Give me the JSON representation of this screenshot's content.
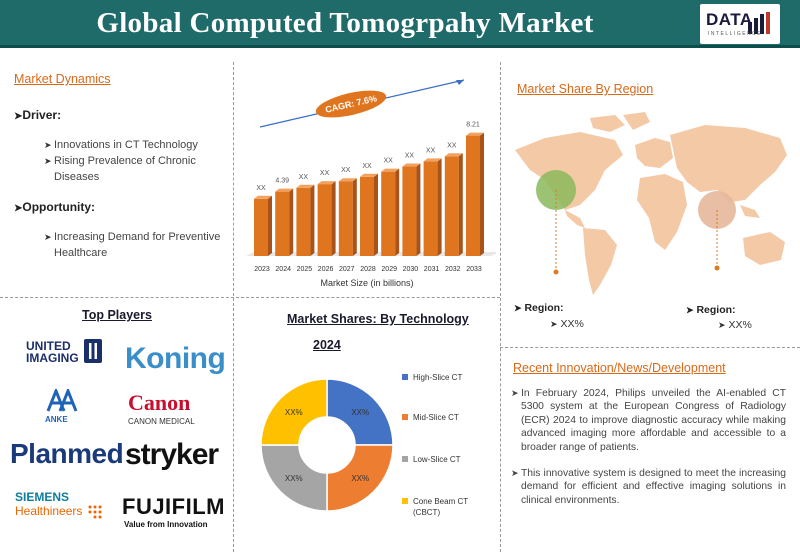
{
  "header": {
    "title": "Global Computed Tomogrpahy Market",
    "logo_text": "DATA",
    "logo_sub": "INTELLIGENCE"
  },
  "dynamics": {
    "title": "Market Dynamics",
    "driver_label": "Driver:",
    "drivers": [
      "Innovations in CT Technology",
      "Rising Prevalence of Chronic",
      "Diseases"
    ],
    "opportunity_label": "Opportunity:",
    "opportunities": [
      "Increasing Demand for Preventive",
      "Healthcare"
    ]
  },
  "chart_data": {
    "type": "bar",
    "categories": [
      "2023",
      "2024",
      "2025",
      "2026",
      "2027",
      "2028",
      "2029",
      "2030",
      "2031",
      "2032",
      "2033"
    ],
    "values": [
      3.9,
      4.39,
      4.65,
      4.9,
      5.1,
      5.4,
      5.75,
      6.1,
      6.45,
      6.8,
      8.21
    ],
    "data_labels": [
      "XX",
      "4.39",
      "XX",
      "XX",
      "XX",
      "XX",
      "XX",
      "XX",
      "XX",
      "XX",
      "8.21"
    ],
    "xlabel": "Market Size (in billions)",
    "cagr": "CAGR: 7.6%",
    "color": "#e0751f"
  },
  "region": {
    "title": "Market Share By Region",
    "label1": "Region:",
    "value1": "XX%",
    "label2": "Region:",
    "value2": "XX%"
  },
  "players": {
    "title": "Top Players",
    "logos": [
      "UNITED",
      "IMAGING",
      "Koning",
      "ANKE",
      "Canon",
      "CANON MEDICAL",
      "Planmed",
      "stryker",
      "SIEMENS",
      "Healthineers",
      "FUJIFILM",
      "Value from Innovation"
    ]
  },
  "technology": {
    "title": "Market Shares: By Technology",
    "year": "2024",
    "legend": [
      {
        "name": "High-Slice CT",
        "color": "#4472c4",
        "value": "XX%"
      },
      {
        "name": "Mid-Slice CT",
        "color": "#ed7d31",
        "value": "XX%"
      },
      {
        "name": "Low-Slice CT",
        "color": "#a5a5a5",
        "value": "XX%"
      },
      {
        "name": "Cone Beam CT",
        "name2": "(CBCT)",
        "color": "#ffc000",
        "value": "XX%"
      }
    ]
  },
  "news": {
    "title": "Recent Innovation/News/Development",
    "items": [
      "In February 2024, Philips unveiled the AI-enabled CT 5300 system at the European Congress of Radiology (ECR) 2024 to improve diagnostic accuracy while making advanced imaging more affordable and accessible to a broader range of patients.",
      "This innovative system is designed to meet the increasing demand for efficient and effective imaging solutions in clinical environments."
    ]
  }
}
